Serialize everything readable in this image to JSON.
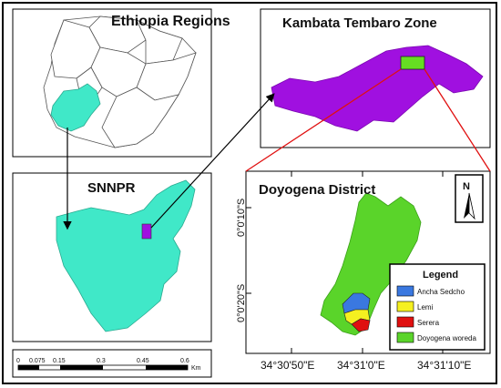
{
  "panels": {
    "ethiopia": {
      "title": "Ethiopia Regions"
    },
    "snnpr": {
      "title": "SNNPR"
    },
    "kambata": {
      "title": "Kambata Tembaro Zone"
    },
    "doyogena": {
      "title": "Doyogena District"
    }
  },
  "coordinates": {
    "lat_1": "0°0'10\"S",
    "lat_2": "0°0'20\"S",
    "lon_1": "34°30'50\"E",
    "lon_2": "34°31'0\"E",
    "lon_3": "34°31'10\"E"
  },
  "north_arrow": {
    "letter": "N"
  },
  "legend": {
    "title": "Legend",
    "items": [
      {
        "label": "Ancha Sedcho",
        "color": "#3a78e0"
      },
      {
        "label": "Lemi",
        "color": "#f5f020"
      },
      {
        "label": "Serera",
        "color": "#e01010"
      },
      {
        "label": "Doyogena woreda",
        "color": "#5ad42a"
      }
    ]
  },
  "scale_bar": {
    "ticks": [
      "0",
      "0.075",
      "0.15",
      "0.3",
      "0.45",
      "0.6"
    ],
    "unit": "Km"
  },
  "colors": {
    "ethiopia_outline": "#555555",
    "snnpr_fill": "#40e8c8",
    "kambata_fill": "#a010e0",
    "kambata_highlight": "#66dd22",
    "doyogena_fill": "#5ad42a",
    "connector_red": "#e01010"
  }
}
